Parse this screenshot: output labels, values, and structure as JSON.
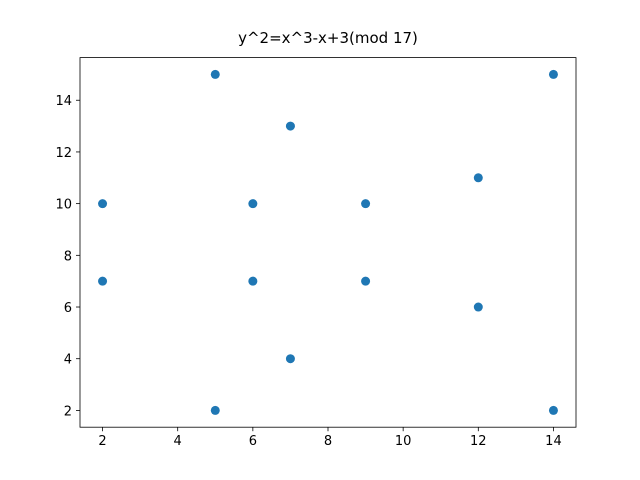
{
  "chart_data": {
    "type": "scatter",
    "title": "y^2=x^3-x+3(mod 17)",
    "x": [
      2,
      2,
      5,
      5,
      6,
      6,
      7,
      7,
      9,
      9,
      12,
      12,
      14,
      14
    ],
    "values": [
      10,
      7,
      15,
      2,
      10,
      7,
      13,
      4,
      10,
      7,
      11,
      6,
      15,
      2
    ],
    "color": "#1f77b4",
    "xlim": [
      1.4,
      14.6
    ],
    "xticks": [
      2,
      4,
      6,
      8,
      10,
      12,
      14
    ],
    "ylim": [
      1.35,
      15.65
    ],
    "yticks": [
      2,
      4,
      6,
      8,
      10,
      12,
      14
    ],
    "grid": false
  }
}
